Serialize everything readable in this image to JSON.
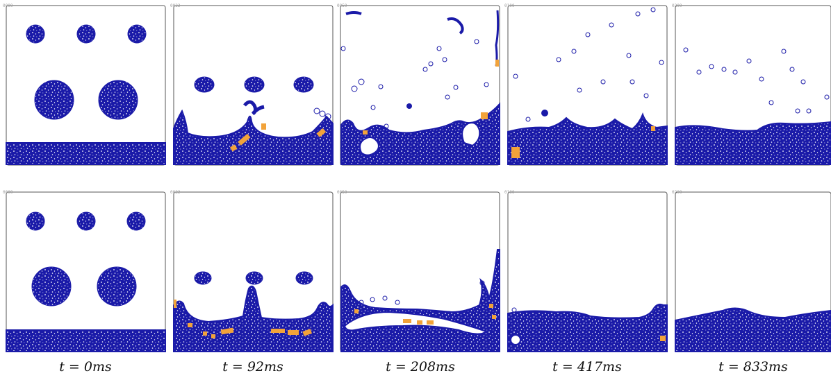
{
  "colors": {
    "fluid": "#1a1aa8",
    "particle": "#2a2ad0",
    "highlight": "#f2a33a",
    "frame": "#555555",
    "background": "#ffffff"
  },
  "frame_numbers": [
    "0000",
    "0022",
    "0050",
    "0100",
    "0200"
  ],
  "time_labels": [
    "t = 0ms",
    "t = 92ms",
    "t = 208ms",
    "t = 417ms",
    "t = 833ms"
  ],
  "rows": [
    {
      "name": "top"
    },
    {
      "name": "bottom"
    }
  ]
}
